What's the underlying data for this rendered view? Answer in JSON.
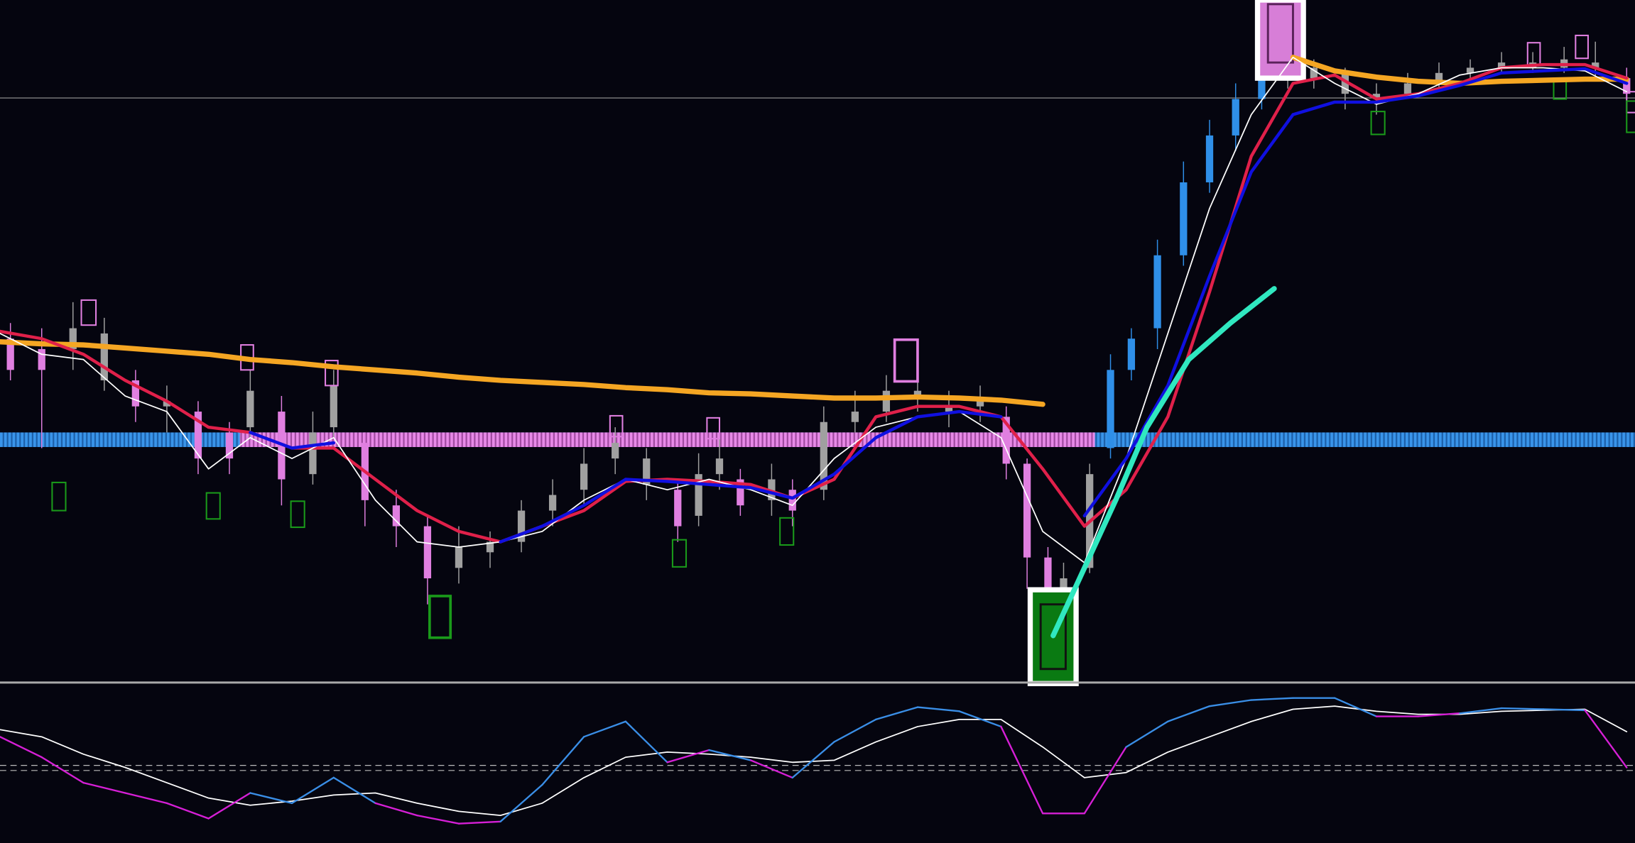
{
  "chart_data": [
    {
      "type": "candlestick",
      "xlim": [
        0,
        1568
      ],
      "ylim": [
        0,
        655
      ],
      "candles": {
        "x": [
          10,
          40,
          70,
          100,
          130,
          160,
          190,
          220,
          240,
          270,
          300,
          320,
          350,
          380,
          410,
          440,
          470,
          500,
          530,
          560,
          590,
          620,
          650,
          670,
          690,
          710,
          740,
          760,
          790,
          820,
          850,
          880,
          910,
          940,
          965,
          985,
          1005,
          1020,
          1045,
          1065,
          1085,
          1110,
          1135,
          1160,
          1185,
          1210,
          1235,
          1260,
          1290,
          1320,
          1350,
          1380,
          1410,
          1440,
          1470,
          1500,
          1530,
          1560
        ],
        "open": [
          330,
          300,
          320,
          335,
          290,
          265,
          260,
          215,
          245,
          260,
          200,
          245,
          230,
          170,
          150,
          110,
          125,
          135,
          165,
          185,
          215,
          215,
          185,
          160,
          200,
          195,
          175,
          185,
          185,
          250,
          260,
          280,
          265,
          265,
          255,
          210,
          120,
          75,
          110,
          225,
          300,
          340,
          410,
          480,
          525,
          560,
          590,
          580,
          585,
          565,
          565,
          575,
          585,
          590,
          590,
          590,
          595,
          580
        ],
        "high": [
          345,
          340,
          365,
          350,
          300,
          285,
          270,
          250,
          300,
          275,
          260,
          300,
          240,
          185,
          160,
          150,
          145,
          175,
          195,
          225,
          245,
          225,
          195,
          220,
          235,
          205,
          210,
          195,
          265,
          280,
          295,
          300,
          280,
          285,
          265,
          215,
          130,
          115,
          210,
          315,
          340,
          425,
          500,
          540,
          575,
          620,
          600,
          598,
          590,
          575,
          585,
          595,
          598,
          605,
          605,
          610,
          615,
          590
        ],
        "low": [
          290,
          225,
          300,
          280,
          250,
          240,
          200,
          200,
          235,
          170,
          190,
          235,
          150,
          130,
          75,
          95,
          110,
          125,
          150,
          170,
          200,
          175,
          135,
          150,
          185,
          160,
          160,
          150,
          175,
          240,
          250,
          260,
          245,
          250,
          195,
          90,
          55,
          60,
          105,
          215,
          290,
          320,
          400,
          470,
          510,
          550,
          570,
          570,
          550,
          545,
          560,
          570,
          580,
          585,
          585,
          585,
          580,
          555
        ],
        "close": [
          300,
          320,
          340,
          290,
          265,
          270,
          215,
          240,
          280,
          195,
          240,
          285,
          175,
          150,
          100,
          130,
          135,
          165,
          180,
          210,
          230,
          190,
          150,
          200,
          215,
          170,
          195,
          165,
          250,
          260,
          280,
          275,
          260,
          270,
          210,
          120,
          80,
          100,
          200,
          300,
          330,
          410,
          480,
          525,
          560,
          590,
          580,
          590,
          565,
          560,
          575,
          585,
          590,
          595,
          595,
          598,
          590,
          565
        ],
        "colors": [
          "#e07fe0",
          "#e07fe0",
          "#a0a0a0",
          "#a0a0a0",
          "#e07fe0",
          "#a0a0a0",
          "#e07fe0",
          "#e07fe0",
          "#a0a0a0",
          "#e07fe0",
          "#a0a0a0",
          "#a0a0a0",
          "#e07fe0",
          "#e07fe0",
          "#e07fe0",
          "#a0a0a0",
          "#a0a0a0",
          "#a0a0a0",
          "#a0a0a0",
          "#a0a0a0",
          "#a0a0a0",
          "#a0a0a0",
          "#e07fe0",
          "#a0a0a0",
          "#a0a0a0",
          "#e07fe0",
          "#a0a0a0",
          "#e07fe0",
          "#a0a0a0",
          "#a0a0a0",
          "#a0a0a0",
          "#a0a0a0",
          "#a0a0a0",
          "#a0a0a0",
          "#e07fe0",
          "#e07fe0",
          "#e07fe0",
          "#a0a0a0",
          "#a0a0a0",
          "#2f8fe8",
          "#2f8fe8",
          "#2f8fe8",
          "#2f8fe8",
          "#2f8fe8",
          "#2f8fe8",
          "#2f8fe8",
          "#a0a0a0",
          "#a0a0a0",
          "#a0a0a0",
          "#a0a0a0",
          "#a0a0a0",
          "#a0a0a0",
          "#a0a0a0",
          "#a0a0a0",
          "#a0a0a0",
          "#a0a0a0",
          "#a0a0a0",
          "#e07fe0"
        ]
      },
      "series": [
        {
          "color": "#f5a623",
          "width": 5,
          "x": [
            0,
            40,
            80,
            120,
            160,
            200,
            240,
            280,
            320,
            360,
            400,
            440,
            480,
            520,
            560,
            600,
            640,
            680,
            720,
            760,
            800,
            840,
            880,
            920,
            960,
            1000,
            1040,
            1080,
            1120,
            1160,
            1200,
            1240,
            1280,
            1320,
            1360,
            1400,
            1440,
            1480,
            1520,
            1560
          ],
          "values": [
            327,
            325,
            324,
            321,
            318,
            315,
            310,
            307,
            303,
            300,
            297,
            293,
            290,
            288,
            286,
            283,
            281,
            278,
            277,
            275,
            273,
            273,
            274,
            273,
            271,
            267,
            null,
            null,
            null,
            null,
            null,
            600,
            587,
            581,
            577,
            575,
            577,
            578,
            579,
            579
          ]
        },
        {
          "color": "#e0204a",
          "width": 3,
          "x": [
            0,
            40,
            80,
            120,
            160,
            200,
            240,
            280,
            320,
            360,
            400,
            440,
            480,
            520,
            560,
            600,
            640,
            680,
            720,
            760,
            800,
            840,
            880,
            920,
            960,
            1000,
            1040,
            1080,
            1120,
            1160,
            1200,
            1240,
            1280,
            1320,
            1360,
            1400,
            1440,
            1480,
            1520,
            1560
          ],
          "values": [
            337,
            330,
            315,
            290,
            270,
            245,
            240,
            225,
            225,
            195,
            165,
            145,
            135,
            150,
            165,
            193,
            195,
            193,
            190,
            177,
            195,
            255,
            265,
            265,
            255,
            205,
            150,
            185,
            255,
            375,
            505,
            575,
            583,
            560,
            565,
            575,
            590,
            593,
            593,
            580
          ]
        },
        {
          "color": "#ffffff",
          "width": 1.2,
          "x": [
            0,
            40,
            80,
            120,
            160,
            200,
            240,
            280,
            320,
            360,
            400,
            440,
            480,
            520,
            560,
            600,
            640,
            680,
            720,
            760,
            800,
            840,
            880,
            920,
            960,
            1000,
            1040,
            1080,
            1120,
            1160,
            1200,
            1240,
            1280,
            1320,
            1360,
            1400,
            1440,
            1480,
            1520,
            1560
          ],
          "values": [
            335,
            315,
            310,
            275,
            260,
            205,
            235,
            215,
            235,
            175,
            135,
            130,
            135,
            145,
            175,
            195,
            185,
            195,
            185,
            170,
            215,
            245,
            255,
            260,
            235,
            145,
            115,
            215,
            335,
            455,
            545,
            600,
            575,
            555,
            565,
            583,
            590,
            590,
            587,
            567
          ]
        },
        {
          "color": "#1010e0",
          "width": 3,
          "x": [
            0,
            40,
            80,
            120,
            160,
            200,
            240,
            280,
            320,
            360,
            400,
            440,
            480,
            520,
            560,
            600,
            640,
            680,
            720,
            760,
            800,
            840,
            880,
            920,
            960,
            1000,
            1040,
            1080,
            1120,
            1160,
            1200,
            1240,
            1280,
            1320,
            1360,
            1400,
            1440,
            1480,
            1520,
            1560
          ],
          "values": [
            null,
            null,
            null,
            null,
            null,
            null,
            240,
            225,
            230,
            null,
            null,
            null,
            135,
            150,
            170,
            195,
            193,
            190,
            187,
            177,
            200,
            235,
            255,
            260,
            255,
            null,
            160,
            215,
            285,
            390,
            490,
            545,
            557,
            557,
            563,
            573,
            585,
            587,
            589,
            575
          ]
        },
        {
          "color": "#30e8c0",
          "width": 5,
          "x": [
            1010,
            1040,
            1070,
            1100,
            1140,
            1180,
            1222
          ],
          "values": [
            45,
            110,
            175,
            245,
            310,
            345,
            378
          ]
        }
      ]
    },
    {
      "type": "line",
      "xlim": [
        0,
        1568
      ],
      "ylim": [
        0,
        150
      ],
      "levels": [
        76,
        71
      ],
      "x": [
        0,
        40,
        80,
        120,
        160,
        200,
        240,
        280,
        320,
        360,
        400,
        440,
        480,
        520,
        560,
        600,
        640,
        680,
        720,
        760,
        800,
        840,
        880,
        920,
        960,
        1000,
        1040,
        1080,
        1120,
        1160,
        1200,
        1240,
        1280,
        1320,
        1360,
        1400,
        1440,
        1480,
        1520,
        1560
      ],
      "series": [
        {
          "color": "#3a8ee6",
          "down_color": "#d61fd6",
          "values": [
            104,
            84,
            59,
            49,
            39,
            24,
            49,
            39,
            64,
            39,
            27,
            19,
            21,
            57,
            104,
            119,
            79,
            91,
            81,
            64,
            99,
            121,
            133,
            129,
            114,
            29,
            29,
            94,
            119,
            134,
            140,
            142,
            142,
            124,
            124,
            127,
            132,
            131,
            130,
            74
          ]
        },
        {
          "color": "#ffffff",
          "values": [
            111,
            104,
            87,
            74,
            59,
            44,
            37,
            41,
            47,
            49,
            39,
            31,
            27,
            39,
            64,
            84,
            89,
            87,
            84,
            79,
            81,
            99,
            114,
            121,
            121,
            94,
            64,
            69,
            89,
            104,
            119,
            131,
            134,
            129,
            126,
            126,
            129,
            130,
            131,
            109
          ]
        }
      ]
    }
  ]
}
